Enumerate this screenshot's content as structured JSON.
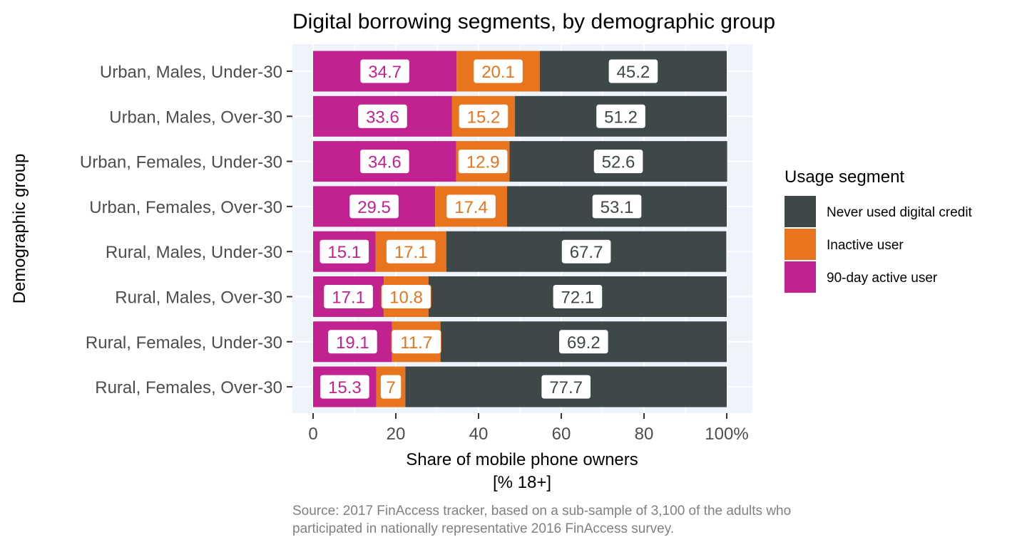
{
  "chart_data": {
    "type": "bar",
    "orientation": "horizontal",
    "stacked": true,
    "title": "Digital borrowing segments, by demographic group",
    "xlabel_line1": "Share of mobile phone owners",
    "xlabel_line2": "[% 18+]",
    "ylabel": "Demographic group",
    "xlim": [
      0,
      100
    ],
    "x_ticks": [
      0,
      20,
      40,
      60,
      80,
      100
    ],
    "x_tick_labels": [
      "0",
      "20",
      "40",
      "60",
      "80",
      "100%"
    ],
    "grid": true,
    "legend_title": "Usage segment",
    "legend_position": "right",
    "caption_line1": "Source: 2017 FinAccess tracker, based on a sub-sample of 3,100 of the adults who",
    "caption_line2": "participated in nationally representative 2016 FinAccess survey.",
    "categories": [
      "Urban, Males, Under-30",
      "Urban, Males, Over-30",
      "Urban, Females, Under-30",
      "Urban, Females, Over-30",
      "Rural, Males, Under-30",
      "Rural, Males, Over-30",
      "Rural, Females, Under-30",
      "Rural, Females, Over-30"
    ],
    "series": [
      {
        "name": "90-day active user",
        "color": "#C2228F",
        "values": [
          34.7,
          33.6,
          34.6,
          29.5,
          15.1,
          17.1,
          19.1,
          15.3
        ],
        "labels": [
          "34.7",
          "33.6",
          "34.6",
          "29.5",
          "15.1",
          "17.1",
          "19.1",
          "15.3"
        ]
      },
      {
        "name": "Inactive user",
        "color": "#E8741E",
        "values": [
          20.1,
          15.2,
          12.9,
          17.4,
          17.1,
          10.8,
          11.7,
          7
        ],
        "labels": [
          "20.1",
          "15.2",
          "12.9",
          "17.4",
          "17.1",
          "10.8",
          "11.7",
          "7"
        ]
      },
      {
        "name": "Never used digital credit",
        "color": "#3F4849",
        "values": [
          45.2,
          51.2,
          52.6,
          53.1,
          67.7,
          72.1,
          69.2,
          77.7
        ],
        "labels": [
          "45.2",
          "51.2",
          "52.6",
          "53.1",
          "67.7",
          "72.1",
          "69.2",
          "77.7"
        ]
      }
    ],
    "legend_order": [
      "Never used digital credit",
      "Inactive user",
      "90-day active user"
    ],
    "panel_background": "#EFF3FB"
  }
}
